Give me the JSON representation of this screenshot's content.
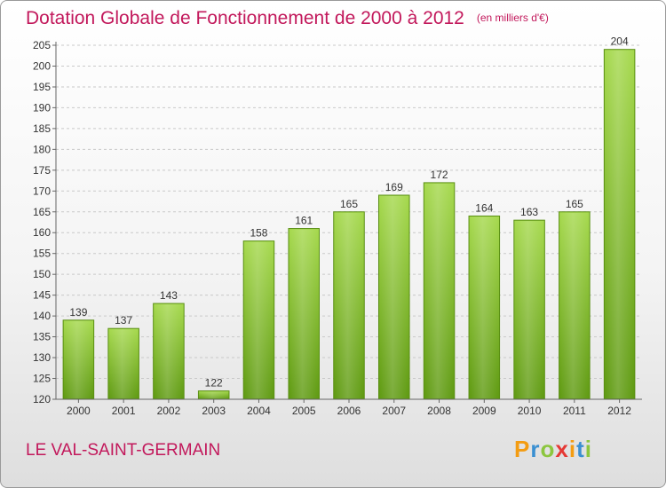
{
  "chart_data": {
    "type": "bar",
    "title": "Dotation Globale de Fonctionnement de 2000 à 2012",
    "unit_label": "(en milliers d'€)",
    "categories": [
      "2000",
      "2001",
      "2002",
      "2003",
      "2004",
      "2005",
      "2006",
      "2007",
      "2008",
      "2009",
      "2010",
      "2011",
      "2012"
    ],
    "values": [
      139,
      137,
      143,
      122,
      158,
      161,
      165,
      169,
      172,
      164,
      163,
      165,
      204
    ],
    "ylim": [
      120,
      205
    ],
    "yticks": [
      120,
      125,
      130,
      135,
      140,
      145,
      150,
      155,
      160,
      165,
      170,
      175,
      180,
      185,
      190,
      195,
      200,
      205
    ],
    "grid": true,
    "xlabel": "",
    "ylabel": "",
    "colors": {
      "bar_light": "#a6d94e",
      "bar_dark": "#5f9a12",
      "title": "#c2185b",
      "axis": "#333333"
    }
  },
  "footer": {
    "commune": "LE VAL-SAINT-GERMAIN",
    "logo": {
      "letters": [
        "P",
        "r",
        "o",
        "x",
        "i",
        "t",
        "i"
      ],
      "colors": [
        "#f39c12",
        "#3a8fd1",
        "#8cc63f",
        "#e53935",
        "#f39c12",
        "#3a8fd1",
        "#8cc63f"
      ],
      "dot_color": "#e53935"
    }
  }
}
